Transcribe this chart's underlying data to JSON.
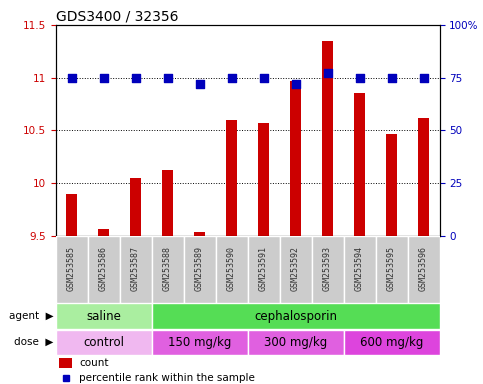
{
  "title": "GDS3400 / 32356",
  "samples": [
    "GSM253585",
    "GSM253586",
    "GSM253587",
    "GSM253588",
    "GSM253589",
    "GSM253590",
    "GSM253591",
    "GSM253592",
    "GSM253593",
    "GSM253594",
    "GSM253595",
    "GSM253596"
  ],
  "bar_values": [
    9.9,
    9.56,
    10.05,
    10.12,
    9.54,
    10.6,
    10.57,
    10.97,
    11.35,
    10.85,
    10.47,
    10.62
  ],
  "percentile_values": [
    75,
    75,
    75,
    75,
    72,
    75,
    75,
    72,
    77,
    75,
    75,
    75
  ],
  "bar_bottom": 9.5,
  "bar_color": "#cc0000",
  "dot_color": "#0000bb",
  "ylim_left": [
    9.5,
    11.5
  ],
  "ylim_right": [
    0,
    100
  ],
  "yticks_left": [
    9.5,
    10.0,
    10.5,
    11.0,
    11.5
  ],
  "ytick_labels_left": [
    "9.5",
    "10",
    "10.5",
    "11",
    "11.5"
  ],
  "yticks_right": [
    0,
    25,
    50,
    75,
    100
  ],
  "ytick_labels_right": [
    "0",
    "25",
    "50",
    "75",
    "100%"
  ],
  "agent_labels": [
    {
      "text": "saline",
      "start": 0,
      "end": 3,
      "color": "#aaeea0"
    },
    {
      "text": "cephalosporin",
      "start": 3,
      "end": 12,
      "color": "#55dd55"
    }
  ],
  "dose_labels": [
    {
      "text": "control",
      "start": 0,
      "end": 3,
      "color": "#f0b0f0"
    },
    {
      "text": "150 mg/kg",
      "start": 3,
      "end": 6,
      "color": "#e060e0"
    },
    {
      "text": "300 mg/kg",
      "start": 6,
      "end": 9,
      "color": "#e060e0"
    },
    {
      "text": "600 mg/kg",
      "start": 9,
      "end": 12,
      "color": "#dd44dd"
    }
  ],
  "bar_width": 0.35,
  "dot_size": 30,
  "legend_count_color": "#cc0000",
  "legend_dot_color": "#0000bb",
  "title_fontsize": 10,
  "tick_fontsize": 7.5,
  "label_fontsize": 8.5,
  "sample_fontsize": 6,
  "grid_color": "#000000",
  "bg_color": "#ffffff",
  "sample_area_color": "#cccccc"
}
